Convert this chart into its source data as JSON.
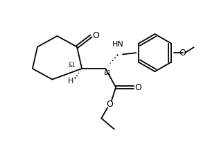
{
  "background_color": "#ffffff",
  "line_color": "#000000",
  "line_width": 1.3,
  "font_size": 7.5,
  "xlim": [
    -0.5,
    10.0
  ],
  "ylim": [
    0.0,
    7.5
  ]
}
